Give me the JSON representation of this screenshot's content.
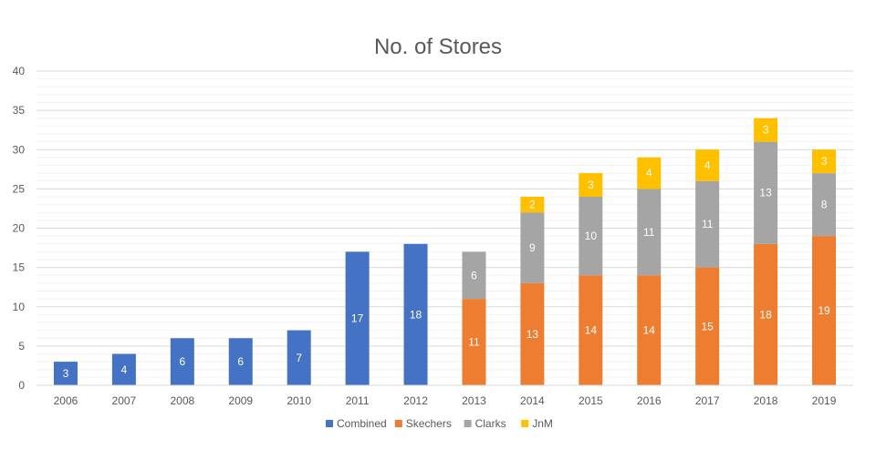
{
  "chart_data": {
    "type": "bar",
    "stacked": true,
    "title": "No. of Stores",
    "xlabel": "",
    "ylabel": "",
    "ylim": [
      0,
      40
    ],
    "yticks": [
      0,
      5,
      10,
      15,
      20,
      25,
      30,
      35,
      40
    ],
    "grid": true,
    "legend_position": "bottom",
    "categories": [
      "2006",
      "2007",
      "2008",
      "2009",
      "2010",
      "2011",
      "2012",
      "2013",
      "2014",
      "2015",
      "2016",
      "2017",
      "2018",
      "2019"
    ],
    "series": [
      {
        "name": "Combined",
        "color": "#4472C4",
        "values": [
          3,
          4,
          6,
          6,
          7,
          17,
          18,
          null,
          null,
          null,
          null,
          null,
          null,
          null
        ]
      },
      {
        "name": "Skechers",
        "color": "#ED7D31",
        "values": [
          null,
          null,
          null,
          null,
          null,
          null,
          null,
          11,
          13,
          14,
          14,
          15,
          18,
          19
        ]
      },
      {
        "name": "Clarks",
        "color": "#A5A5A5",
        "values": [
          null,
          null,
          null,
          null,
          null,
          null,
          null,
          6,
          9,
          10,
          11,
          11,
          13,
          8
        ]
      },
      {
        "name": "JnM",
        "color": "#FFC000",
        "values": [
          null,
          null,
          null,
          null,
          null,
          null,
          null,
          null,
          2,
          3,
          4,
          4,
          3,
          3
        ]
      }
    ]
  }
}
